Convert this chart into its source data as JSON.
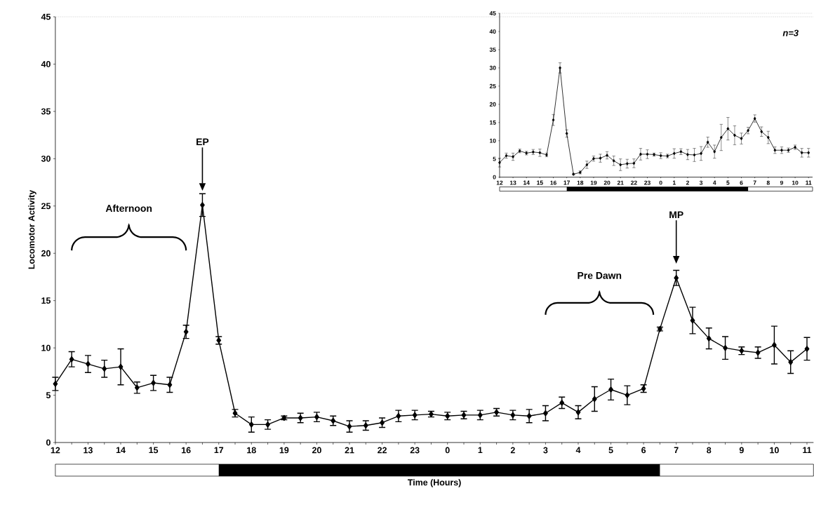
{
  "chart_data": [
    {
      "type": "line",
      "xlabel": "Time (Hours)",
      "ylabel": "Locomotor Activity",
      "color": "#000000",
      "marker": "diamond",
      "line_style": "solid",
      "categories": [
        "12",
        null,
        "13",
        null,
        "14",
        null,
        "15",
        null,
        "16",
        null,
        "17",
        null,
        "18",
        null,
        "19",
        null,
        "20",
        null,
        "21",
        null,
        "22",
        null,
        "23",
        null,
        "0",
        null,
        "1",
        null,
        "2",
        null,
        "3",
        null,
        "4",
        null,
        "5",
        null,
        "6",
        null,
        "7",
        null,
        "8",
        null,
        "9",
        null,
        "10",
        null,
        "11"
      ],
      "values": [
        6.2,
        8.8,
        8.3,
        7.8,
        8.0,
        5.8,
        6.3,
        6.1,
        11.7,
        25.1,
        10.8,
        3.1,
        1.9,
        1.9,
        2.6,
        2.6,
        2.7,
        2.3,
        1.7,
        1.8,
        2.1,
        2.8,
        2.9,
        3.0,
        2.8,
        2.9,
        2.9,
        3.2,
        2.9,
        2.8,
        3.1,
        4.2,
        3.2,
        4.6,
        5.6,
        5.0,
        5.7,
        12.0,
        17.4,
        12.9,
        11.0,
        10.0,
        9.7,
        9.5,
        10.3,
        8.5,
        9.9
      ],
      "errors": [
        0.7,
        0.8,
        0.9,
        0.9,
        1.9,
        0.6,
        0.8,
        0.8,
        0.7,
        1.2,
        0.4,
        0.4,
        0.8,
        0.5,
        0.2,
        0.5,
        0.5,
        0.5,
        0.6,
        0.5,
        0.5,
        0.6,
        0.5,
        0.3,
        0.4,
        0.4,
        0.5,
        0.4,
        0.5,
        0.7,
        0.8,
        0.6,
        0.7,
        1.3,
        1.1,
        1.0,
        0.4,
        0.2,
        0.8,
        1.4,
        1.1,
        1.2,
        0.4,
        0.6,
        2.0,
        1.2,
        1.2
      ],
      "ylim": [
        0,
        45
      ],
      "yticks": [
        0,
        5,
        10,
        15,
        20,
        25,
        30,
        35,
        40,
        45
      ],
      "annotations": [
        "Afternoon",
        "EP",
        "Pre Dawn",
        "MP"
      ]
    },
    {
      "type": "line",
      "color": "#000000",
      "marker": "diamond",
      "line_style": "solid",
      "categories": [
        "12",
        null,
        "13",
        null,
        "14",
        null,
        "15",
        null,
        "16",
        null,
        "17",
        null,
        "18",
        null,
        "19",
        null,
        "20",
        null,
        "21",
        null,
        "22",
        null,
        "23",
        null,
        "0",
        null,
        "1",
        null,
        "2",
        null,
        "3",
        null,
        "4",
        null,
        "5",
        null,
        "6",
        null,
        "7",
        null,
        "8",
        null,
        "9",
        null,
        "10",
        null,
        "11"
      ],
      "values": [
        4.0,
        5.9,
        5.6,
        7.2,
        6.6,
        6.9,
        6.7,
        6.1,
        15.7,
        30.0,
        12.0,
        0.8,
        1.3,
        3.4,
        5.1,
        5.2,
        6.0,
        4.5,
        3.4,
        3.7,
        3.8,
        6.3,
        6.3,
        6.2,
        5.9,
        5.8,
        6.5,
        7.0,
        6.2,
        6.1,
        6.5,
        9.6,
        7.0,
        10.9,
        13.3,
        11.5,
        10.6,
        12.8,
        16.1,
        12.5,
        10.9,
        7.4,
        7.4,
        7.4,
        8.2,
        6.7,
        6.7
      ],
      "errors": [
        1.2,
        0.7,
        1.0,
        0.5,
        0.5,
        0.7,
        1.0,
        0.5,
        1.5,
        1.4,
        1.0,
        0.2,
        0.4,
        1.0,
        0.7,
        1.1,
        1.0,
        1.3,
        1.6,
        1.2,
        1.2,
        1.6,
        1.2,
        0.4,
        0.8,
        0.5,
        1.3,
        0.8,
        1.4,
        1.8,
        1.9,
        1.4,
        1.8,
        3.6,
        3.1,
        2.6,
        1.5,
        0.9,
        1.0,
        1.3,
        1.7,
        0.9,
        0.9,
        0.6,
        0.6,
        1.2,
        1.2
      ],
      "ylim": [
        0,
        45
      ],
      "yticks": [
        0,
        5,
        10,
        15,
        20,
        25,
        30,
        35,
        40,
        45
      ],
      "annotations": [
        "n=3"
      ]
    }
  ]
}
